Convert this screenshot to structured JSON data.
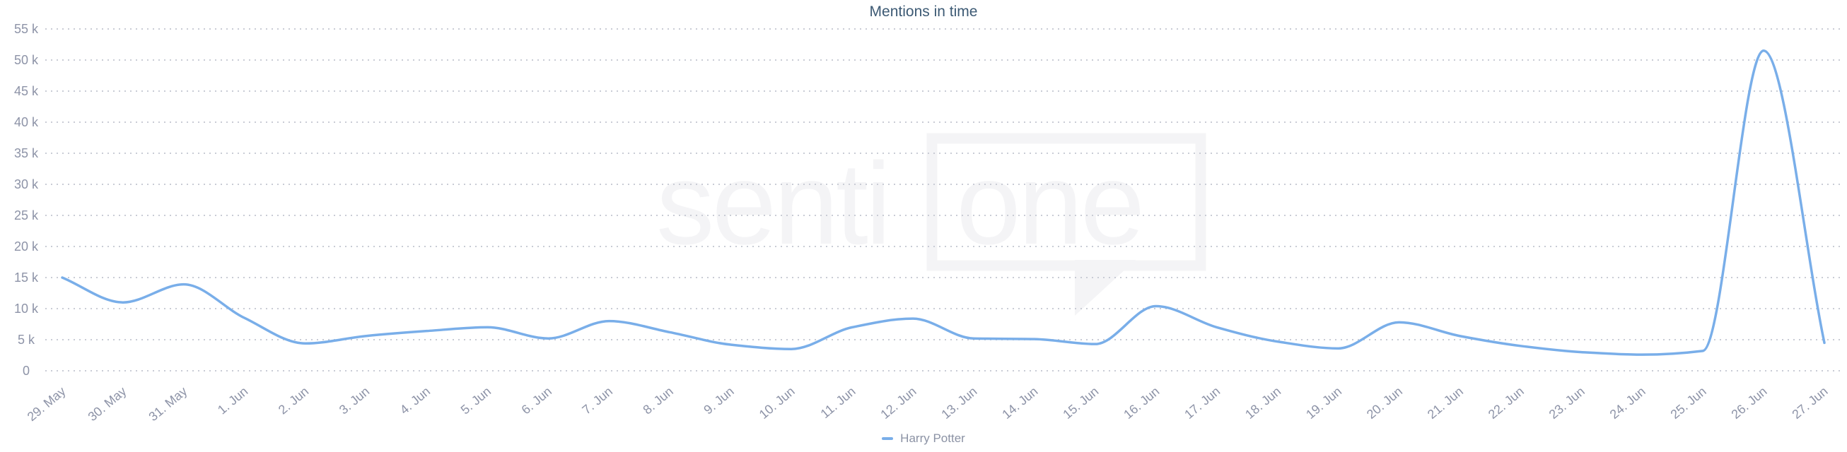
{
  "chart_title": "Mentions in time",
  "watermark": {
    "text_left": "senti",
    "text_right": "one"
  },
  "legend": {
    "items": [
      {
        "label": "Harry Potter",
        "color": "#79aee9"
      }
    ]
  },
  "colors": {
    "line": "#79aee9",
    "title": "#3d5a74",
    "axis_label": "#8d93a7",
    "grid_dot": "#c9ccd5",
    "watermark": "#f4f4f6",
    "legend_text": "#8b92a4"
  },
  "chart_data": {
    "type": "line",
    "title": "Mentions in time",
    "x_labels": [
      "29. May",
      "30. May",
      "31. May",
      "1. Jun",
      "2. Jun",
      "3. Jun",
      "4. Jun",
      "5. Jun",
      "6. Jun",
      "7. Jun",
      "8. Jun",
      "9. Jun",
      "10. Jun",
      "11. Jun",
      "12. Jun",
      "13. Jun",
      "14. Jun",
      "15. Jun",
      "16. Jun",
      "17. Jun",
      "18. Jun",
      "19. Jun",
      "20. Jun",
      "21. Jun",
      "22. Jun",
      "23. Jun",
      "24. Jun",
      "25. Jun",
      "26. Jun",
      "27. Jun"
    ],
    "series": [
      {
        "name": "Harry Potter",
        "color": "#79aee9",
        "values": [
          15000,
          11000,
          13900,
          8500,
          4400,
          5600,
          6400,
          7000,
          5200,
          8000,
          6200,
          4200,
          3500,
          7000,
          8400,
          5200,
          5100,
          4300,
          10400,
          7000,
          4700,
          3600,
          7800,
          5600,
          4000,
          3000,
          2600,
          3200,
          51500,
          4500
        ]
      }
    ],
    "y_ticks_k": [
      0,
      5,
      10,
      15,
      20,
      25,
      30,
      35,
      40,
      45,
      50,
      55
    ],
    "y_tick_labels": [
      "0",
      "5 k",
      "10 k",
      "15 k",
      "20 k",
      "25 k",
      "30 k",
      "35 k",
      "40 k",
      "45 k",
      "50 k",
      "55 k"
    ],
    "ylim": [
      0,
      55000
    ],
    "grid": "dotted-horizontal",
    "line_style": "smooth-spline",
    "legend_position": "bottom-center"
  }
}
